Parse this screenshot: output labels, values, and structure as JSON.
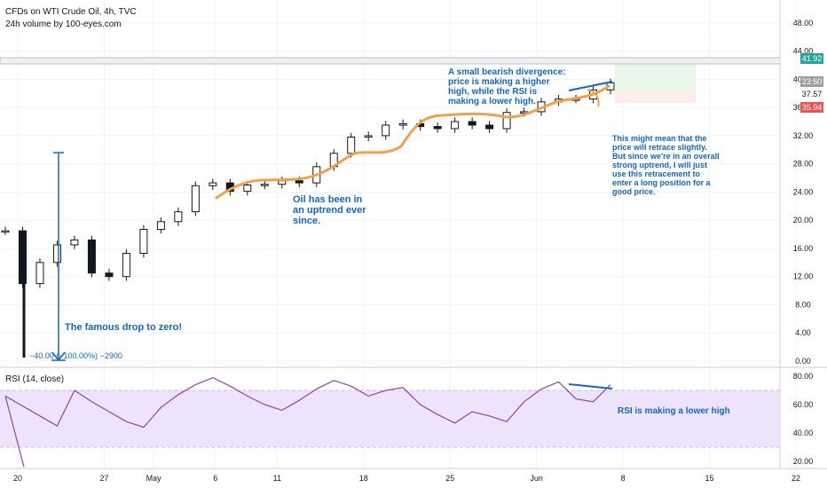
{
  "header": {
    "title": "CFDs on WTI Crude Oil, 4h, TVC",
    "volume_label": "24h volume by 100-eyes.com"
  },
  "rsi": {
    "label": "RSI (14, close)",
    "levels": [
      20,
      40,
      60,
      80
    ],
    "band": [
      30,
      70
    ]
  },
  "annotations": {
    "divergence": [
      "A small bearish divergence:",
      "price is making a higher",
      "high, while the RSI is",
      "making a lower high."
    ],
    "uptrend": [
      "Oil has been in",
      "an uptrend ever",
      "since."
    ],
    "retrace": [
      "This might mean that the",
      "price will retrace slightly.",
      "But since we're in an overall",
      "strong uptrend, I will just",
      "use this retracement to",
      "enter a long position for a",
      "good price."
    ],
    "drop": "The famous drop to zero!",
    "measure": "−40.00 (−100.00%) −2900",
    "rsi_note": "RSI is making a lower high"
  },
  "price_tags": [
    {
      "label": "41.92",
      "color": "#26a69a"
    },
    {
      "label": "23:50",
      "color": "#9e9e9e"
    },
    {
      "label": "37.57",
      "color": "#ffffff"
    },
    {
      "label": "35.94",
      "color": "#ef5350"
    }
  ],
  "colors": {
    "accent_blue": "#1565c0",
    "orange": "#f0a04b",
    "rsi_line": "#8e44ad",
    "rsi_band": "#ede3fb",
    "candle": "#131722"
  },
  "chart_data": {
    "type": "line",
    "title": "CFDs on WTI Crude Oil, 4h, TVC",
    "xlabel": "",
    "ylabel": "",
    "x_ticks": [
      "20",
      "27",
      "May",
      "6",
      "11",
      "18",
      "25",
      "Jun",
      "8",
      "15",
      "22"
    ],
    "y_ticks": [
      "0.00",
      "4.00",
      "8.00",
      "12.00",
      "16.00",
      "20.00",
      "24.00",
      "28.00",
      "32.00",
      "36.00",
      "40.00",
      "44.00",
      "48.00"
    ],
    "ylim": [
      0,
      50
    ],
    "series": [
      {
        "x": [
          "Apr 20",
          "Apr 21",
          "Apr 22",
          "Apr 23",
          "Apr 24",
          "Apr 27",
          "Apr 28",
          "Apr 29",
          "Apr 30",
          "May 1",
          "May 4",
          "May 5",
          "May 6",
          "May 7",
          "May 8",
          "May 11",
          "May 12",
          "May 13",
          "May 14",
          "May 15",
          "May 18",
          "May 19",
          "May 20",
          "May 21",
          "May 22",
          "May 25",
          "May 26",
          "May 27",
          "May 28",
          "May 29",
          "Jun 1",
          "Jun 2",
          "Jun 3",
          "Jun 4",
          "Jun 5",
          "Jun 8"
        ],
        "values": [
          18.5,
          11.0,
          14.0,
          16.5,
          17.2,
          12.5,
          12.0,
          15.3,
          18.7,
          19.8,
          21.2,
          24.9,
          25.3,
          24.1,
          25.0,
          25.1,
          25.6,
          25.3,
          27.6,
          29.5,
          31.8,
          32.0,
          33.5,
          33.7,
          33.3,
          33.0,
          34.0,
          33.5,
          33.0,
          35.3,
          35.4,
          36.8,
          37.2,
          37.2,
          38.5,
          39.5
        ]
      }
    ],
    "rsi_values": [
      66,
      59,
      52,
      45,
      70,
      62,
      55,
      48,
      44,
      58,
      67,
      74,
      79,
      73,
      66,
      60,
      56,
      63,
      71,
      77,
      73,
      66,
      70,
      72,
      60,
      53,
      47,
      55,
      52,
      48,
      62,
      71,
      76,
      64,
      62,
      74
    ],
    "rsi_ylim": [
      15,
      85
    ]
  }
}
